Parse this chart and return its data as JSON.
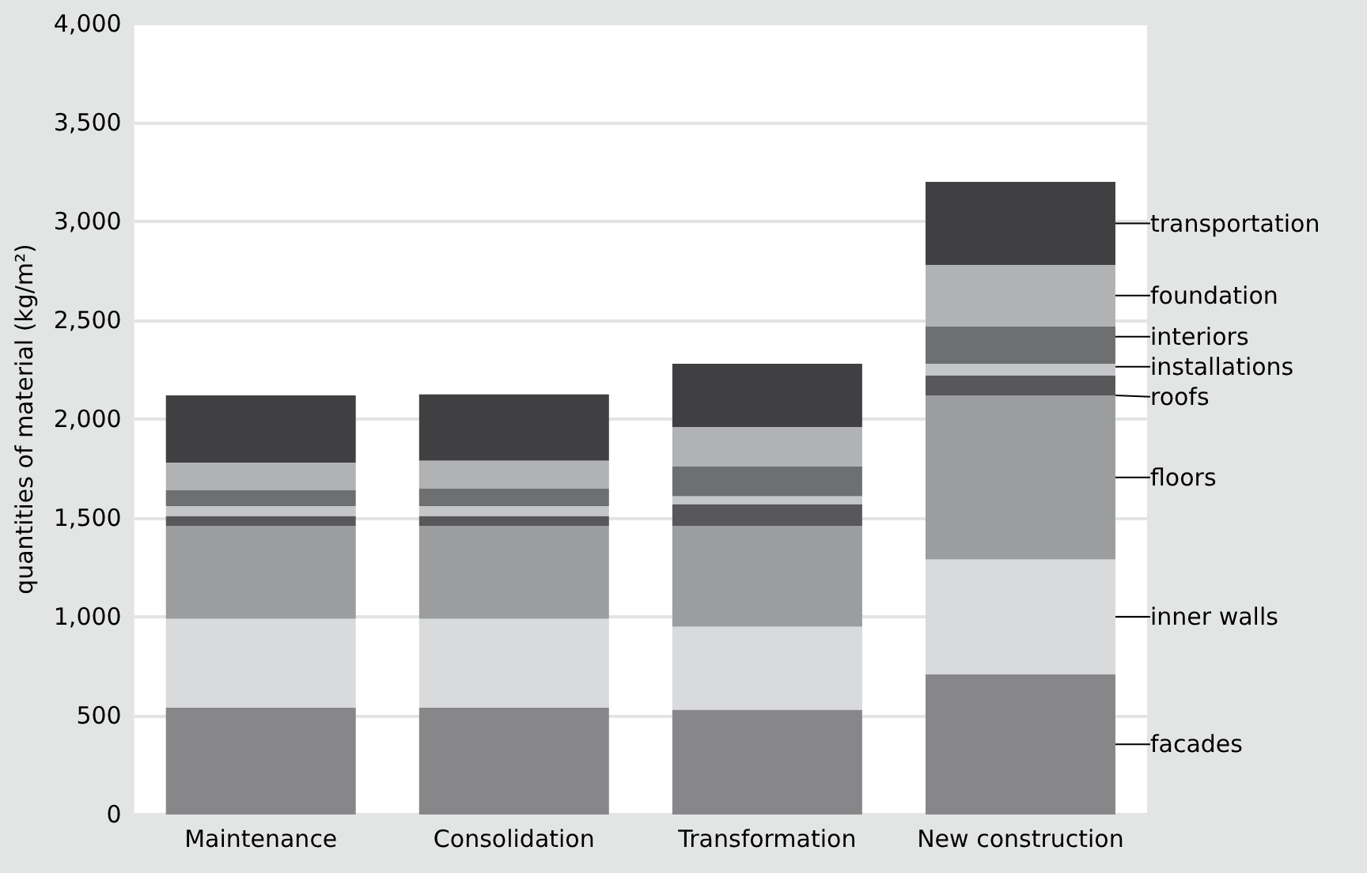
{
  "chart_data": {
    "type": "bar",
    "stacked": true,
    "ylabel": "quantities of material (kg/m²)",
    "categories": [
      "Maintenance",
      "Consolidation",
      "Transformation",
      "New construction"
    ],
    "series": [
      {
        "name": "facades",
        "color": "#87878a",
        "values": [
          540,
          540,
          530,
          710
        ]
      },
      {
        "name": "inner walls",
        "color": "#d9dadc",
        "values": [
          450,
          450,
          420,
          580
        ]
      },
      {
        "name": "floors",
        "color": "#9c9d9f",
        "values": [
          470,
          470,
          510,
          830
        ]
      },
      {
        "name": "roofs",
        "color": "#58585b",
        "values": [
          50,
          50,
          110,
          100
        ]
      },
      {
        "name": "installations",
        "color": "#c5c6c8",
        "values": [
          50,
          50,
          40,
          60
        ]
      },
      {
        "name": "interiors",
        "color": "#6e6f71",
        "values": [
          80,
          90,
          150,
          190
        ]
      },
      {
        "name": "foundation",
        "color": "#b1b2b4",
        "values": [
          140,
          140,
          200,
          310
        ]
      },
      {
        "name": "transportation",
        "color": "#404042",
        "values": [
          340,
          335,
          320,
          420
        ]
      }
    ],
    "ylim": [
      0,
      4000
    ],
    "yticks": [
      {
        "value": 0,
        "label": "0"
      },
      {
        "value": 500,
        "label": "500"
      },
      {
        "value": 1000,
        "label": "1,000"
      },
      {
        "value": 1500,
        "label": "1,500"
      },
      {
        "value": 2000,
        "label": "2,000"
      },
      {
        "value": 2500,
        "label": "2,500"
      },
      {
        "value": 3000,
        "label": "3,000"
      },
      {
        "value": 3500,
        "label": "3,500"
      },
      {
        "value": 4000,
        "label": "4,000"
      }
    ],
    "grid": "y",
    "legend": false
  }
}
